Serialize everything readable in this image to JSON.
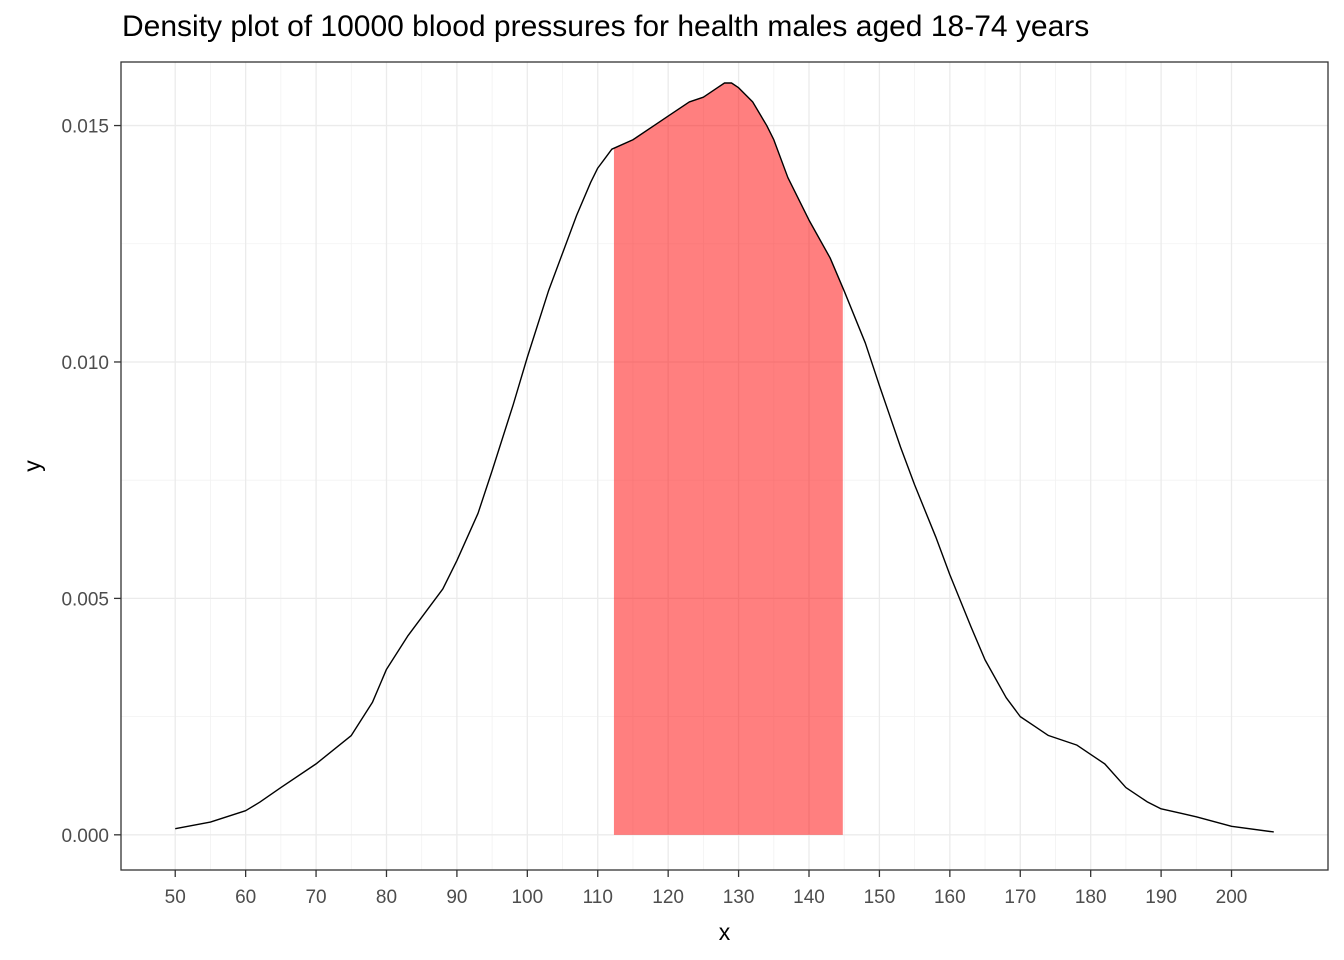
{
  "chart_data": {
    "type": "area",
    "title": "Density plot of 10000 blood pressures for health males aged 18-74 years",
    "xlabel": "x",
    "ylabel": "y",
    "xlim": [
      42.3,
      213.7
    ],
    "ylim": [
      -0.000744,
      0.016344
    ],
    "x_ticks": [
      50,
      60,
      70,
      80,
      90,
      100,
      110,
      120,
      130,
      140,
      150,
      160,
      170,
      180,
      190,
      200
    ],
    "y_ticks": [
      0.0,
      0.005,
      0.01,
      0.015
    ],
    "y_tick_labels": [
      "0.000",
      "0.005",
      "0.010",
      "0.015"
    ],
    "grid": true,
    "line_color": "#000000",
    "fill_color": "#ff0000",
    "fill_opacity": 0.5,
    "shaded_range": [
      112.3,
      144.8
    ],
    "density": {
      "x": [
        50,
        55,
        60,
        62,
        65,
        70,
        75,
        78,
        80,
        83,
        85,
        88,
        90,
        93,
        95,
        98,
        100,
        103,
        105,
        107,
        109,
        110,
        111,
        112,
        115,
        118,
        120,
        123,
        125,
        127,
        128,
        129,
        130,
        132,
        134,
        135,
        137,
        140,
        143,
        145,
        148,
        150,
        153,
        155,
        158,
        160,
        163,
        165,
        168,
        170,
        172,
        174,
        176,
        178,
        180,
        182,
        185,
        188,
        190,
        193,
        195,
        200,
        206
      ],
      "y": [
        0.00013,
        0.00027,
        0.00051,
        0.00069,
        0.001,
        0.0015,
        0.0021,
        0.0028,
        0.0035,
        0.0042,
        0.0046,
        0.0052,
        0.0058,
        0.0068,
        0.0077,
        0.0091,
        0.0101,
        0.0115,
        0.0123,
        0.0131,
        0.0138,
        0.0141,
        0.0143,
        0.0145,
        0.0147,
        0.015,
        0.0152,
        0.0155,
        0.0156,
        0.0158,
        0.0159,
        0.0159,
        0.0158,
        0.0155,
        0.015,
        0.0147,
        0.0139,
        0.013,
        0.0122,
        0.0115,
        0.0104,
        0.0095,
        0.0082,
        0.0074,
        0.0063,
        0.0055,
        0.0044,
        0.0037,
        0.0029,
        0.0025,
        0.0023,
        0.0021,
        0.002,
        0.0019,
        0.0017,
        0.0015,
        0.001,
        0.0007,
        0.00055,
        0.00045,
        0.00038,
        0.00018,
        6e-05
      ]
    }
  }
}
